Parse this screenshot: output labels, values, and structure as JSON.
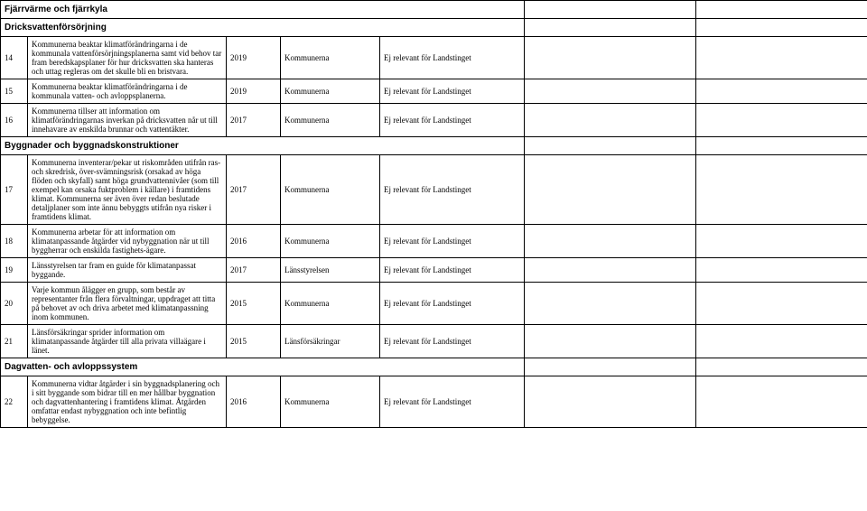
{
  "sections": {
    "s0": {
      "title": "Fjärrvärme och fjärrkyla"
    },
    "s1": {
      "title": "Dricksvattenförsörjning"
    },
    "s2": {
      "title": "Byggnader och byggnadskonstruktioner"
    },
    "s3": {
      "title": "Dagvatten- och avloppssystem"
    }
  },
  "rows": {
    "r14": {
      "num": "14",
      "desc": "Kommunerna beaktar klimatförändringarna i de kommunala vattenförsörjningsplanerna samt vid behov tar fram beredskapsplaner för hur dricksvatten ska hanteras och uttag regleras om det skulle bli en bristvara.",
      "year": "2019",
      "who": "Kommunerna",
      "rel": "Ej relevant för Landstinget"
    },
    "r15": {
      "num": "15",
      "desc": "Kommunerna beaktar klimatförändringarna i de kommunala vatten- och avloppsplanerna.",
      "year": "2019",
      "who": "Kommunerna",
      "rel": "Ej relevant för Landstinget"
    },
    "r16": {
      "num": "16",
      "desc": "Kommunerna tillser att information om klimatförändringarnas inverkan på dricksvatten når ut till innehavare av enskilda brunnar och vattentäkter.",
      "year": "2017",
      "who": "Kommunerna",
      "rel": "Ej relevant för Landstinget"
    },
    "r17": {
      "num": "17",
      "desc": "Kommunerna inventerar/pekar ut riskområden utifrån ras- och skredrisk, över-svämningsrisk (orsakad av höga flöden och skyfall) samt höga grundvattennivåer (som till exempel kan orsaka fuktproblem i källare) i framtidens klimat. Kommunerna ser även över redan beslutade detaljplaner som inte ännu bebyggts utifrån nya risker i framtidens klimat.",
      "year": "2017",
      "who": "Kommunerna",
      "rel": "Ej relevant för Landstinget"
    },
    "r18": {
      "num": "18",
      "desc": "Kommunerna arbetar för att information om klimatanpassande åtgärder vid nybyggnation när ut till byggherrar och enskilda fastighets-ägare.",
      "year": "2016",
      "who": "Kommunerna",
      "rel": "Ej relevant för Landstinget"
    },
    "r19": {
      "num": "19",
      "desc": "Länsstyrelsen tar fram en guide för klimatanpassat byggande.",
      "year": "2017",
      "who": "Länsstyrelsen",
      "rel": "Ej relevant för Landstinget"
    },
    "r20": {
      "num": "20",
      "desc": "Varje kommun ålägger en grupp, som består av representanter från flera förvaltningar, uppdraget att titta på behovet av och driva arbetet med klimatanpassning inom kommunen.",
      "year": "2015",
      "who": "Kommunerna",
      "rel": "Ej relevant för Landstinget"
    },
    "r21": {
      "num": "21",
      "desc": "Länsförsäkringar sprider information om klimatanpassande åtgärder till alla privata villaägare i länet.",
      "year": "2015",
      "who": "Länsförsäkringar",
      "rel": "Ej relevant för Landstinget"
    },
    "r22": {
      "num": "22",
      "desc": "Kommunerna vidtar åtgärder i sin byggnadsplanering och i sitt byggande som bidrar till en mer hållbar byggnation och dagvattenhantering  i framtidens klimat. Åtgärden omfattar endast nybyggnation och inte befintlig bebyggelse.",
      "year": "2016",
      "who": "Kommunerna",
      "rel": "Ej relevant för Landstinget"
    }
  }
}
